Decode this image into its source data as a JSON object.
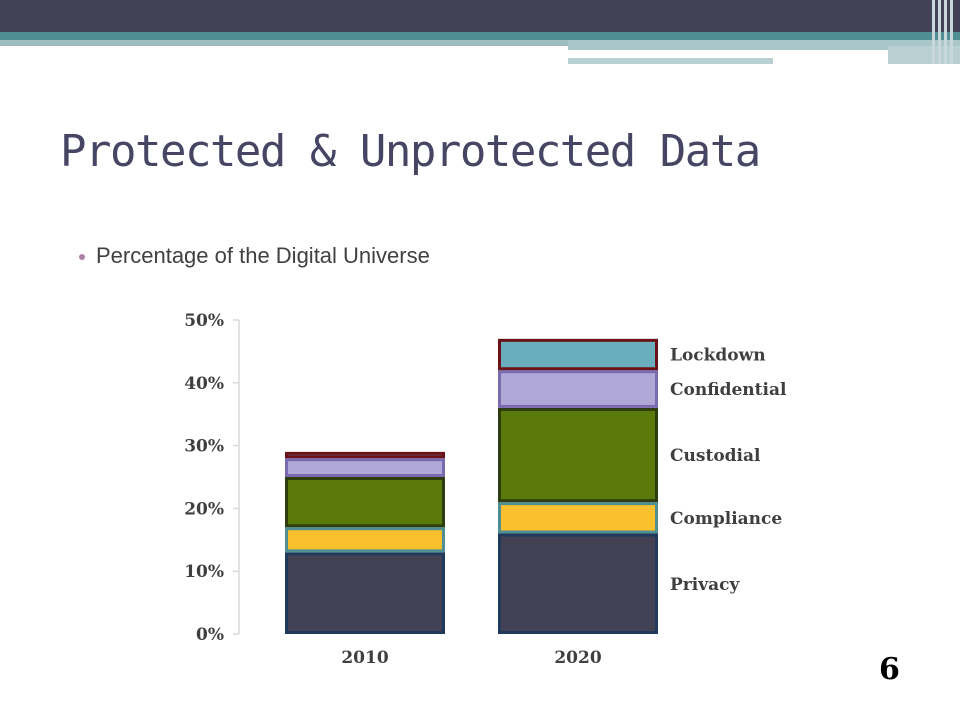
{
  "slide": {
    "title": "Protected & Unprotected Data",
    "bullet": "Percentage of the Digital Universe",
    "page_number": "6"
  },
  "colors": {
    "header_bar": "#424156",
    "accent_teal": "#4f8e92",
    "title_text": "#464563",
    "bullet_dot": "#b07fa8"
  },
  "chart_data": {
    "type": "bar",
    "stacked": true,
    "categories": [
      "2010",
      "2020"
    ],
    "y_ticks": [
      "0%",
      "10%",
      "20%",
      "30%",
      "40%",
      "50%"
    ],
    "ylim": [
      0,
      50
    ],
    "grid": false,
    "legend_position": "right, labels beside the 2020 bar",
    "series": [
      {
        "name": "Privacy",
        "values": [
          13,
          16
        ],
        "fill": "#424254",
        "stroke": "#1f3a5c"
      },
      {
        "name": "Compliance",
        "values": [
          4,
          5
        ],
        "fill": "#fbc02d",
        "stroke": "#4f8e92"
      },
      {
        "name": "Custodial",
        "values": [
          8,
          15
        ],
        "fill": "#5a7a0a",
        "stroke": "#2e3d10"
      },
      {
        "name": "Confidential",
        "values": [
          3,
          6
        ],
        "fill": "#b0a8d6",
        "stroke": "#7a6ab0"
      },
      {
        "name": "Lockdown",
        "values": [
          1,
          5
        ],
        "fill": "#6aaebd",
        "stroke": "#6b1218"
      }
    ]
  }
}
